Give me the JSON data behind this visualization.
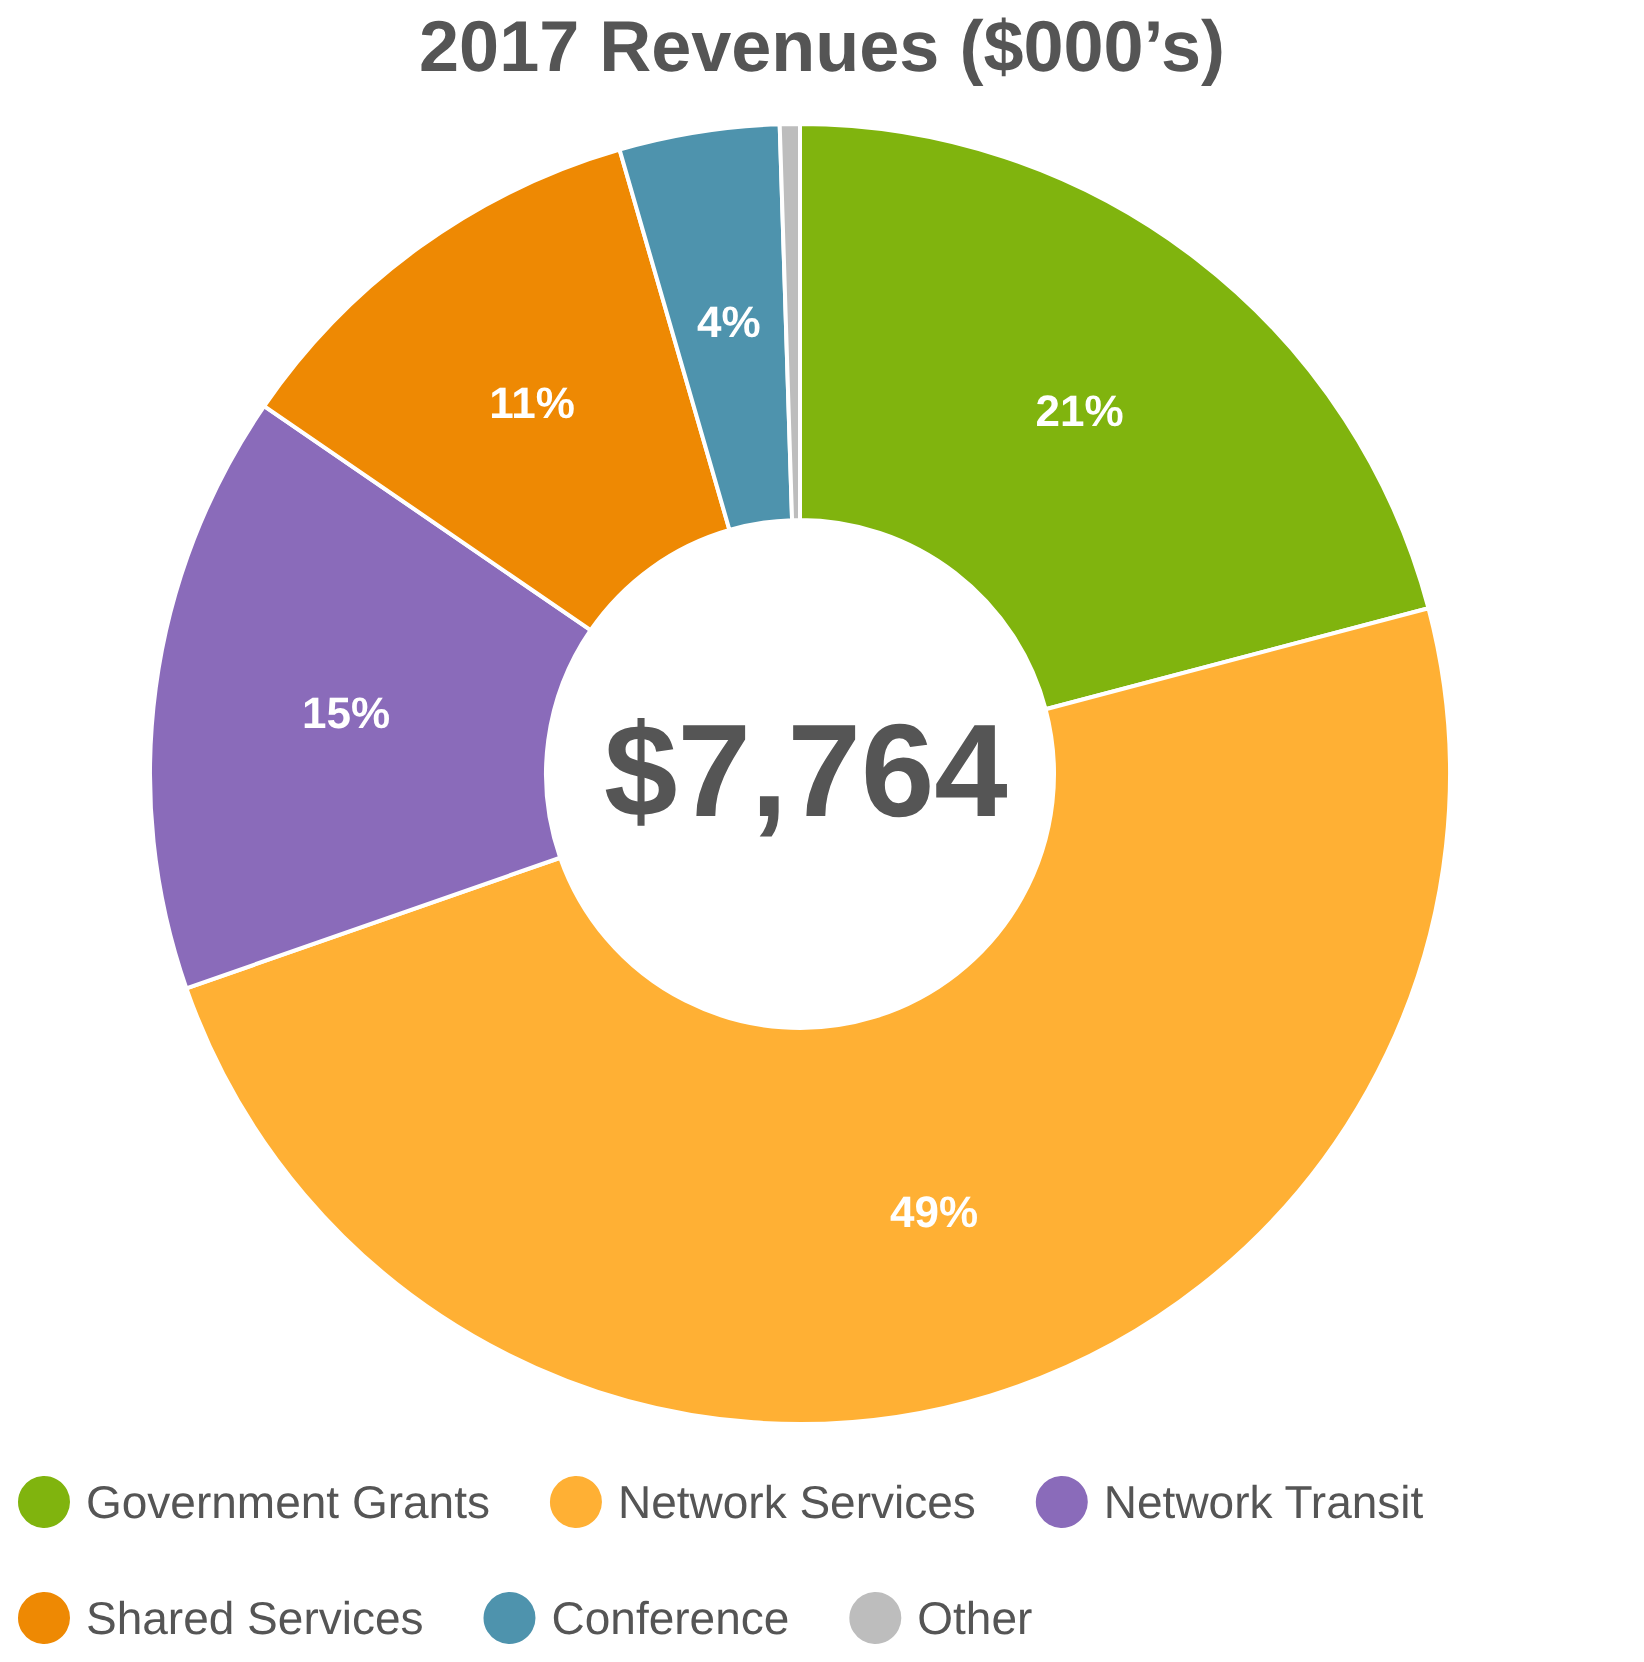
{
  "chart_data": {
    "type": "donut",
    "title": "2017 Revenues ($000’s)",
    "categories": [
      "Government Grants",
      "Network Services",
      "Network Transit",
      "Shared Services",
      "Conference",
      "Other"
    ],
    "values": [
      21,
      49,
      15,
      11,
      4,
      0.5
    ],
    "value_labels": [
      "21%",
      "49%",
      "15%",
      "11%",
      "4%",
      null
    ],
    "colors": [
      "#80b40e",
      "#ffb034",
      "#8a6bba",
      "#ee8903",
      "#4e93ad",
      "#bdbdbd"
    ],
    "annotations": [
      "$7,764"
    ],
    "legend": "bottom"
  }
}
